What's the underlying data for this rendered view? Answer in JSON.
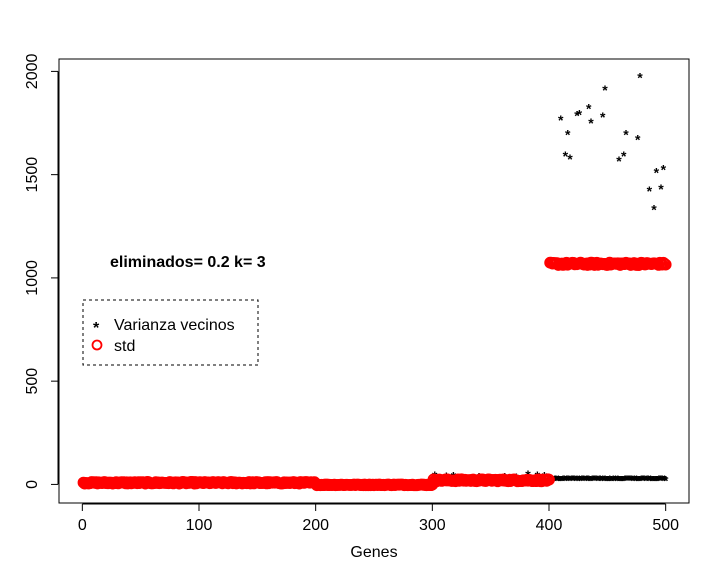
{
  "chart_data": {
    "type": "scatter",
    "xlabel": "Genes",
    "ylabel": "",
    "xlim": [
      -20,
      520
    ],
    "ylim": [
      -90,
      2060
    ],
    "xticks": [
      0,
      100,
      200,
      300,
      400,
      500
    ],
    "yticks": [
      0,
      500,
      1000,
      1500,
      2000
    ],
    "annotation": {
      "text": "eliminados= 0.2 k= 3",
      "x": 25,
      "y": 1090
    },
    "legend": {
      "placement": "left",
      "entries": [
        {
          "label": "Varianza vecinos",
          "symbol": "*",
          "color": "#000000"
        },
        {
          "label": "std",
          "symbol": "o",
          "color": "#ff0000"
        }
      ]
    },
    "series": [
      {
        "name": "Varianza vecinos",
        "symbol": "*",
        "color": "#000000",
        "segments": [
          {
            "x_from": 1,
            "x_to": 200,
            "y": 12,
            "noise": 3
          },
          {
            "x_from": 201,
            "x_to": 300,
            "y": 1,
            "noise": 1
          },
          {
            "x_from": 301,
            "x_to": 400,
            "y": 20,
            "noise": 8
          },
          {
            "x_from": 401,
            "x_to": 500,
            "y": 30,
            "noise": 2
          }
        ],
        "points": [
          [
            302,
            50
          ],
          [
            312,
            45
          ],
          [
            318,
            48
          ],
          [
            340,
            42
          ],
          [
            348,
            40
          ],
          [
            355,
            38
          ],
          [
            362,
            44
          ],
          [
            372,
            40
          ],
          [
            382,
            55
          ],
          [
            390,
            50
          ],
          [
            396,
            48
          ],
          [
            410,
            1775
          ],
          [
            414,
            1600
          ],
          [
            416,
            1705
          ],
          [
            418,
            1585
          ],
          [
            424,
            1795
          ],
          [
            426,
            1800
          ],
          [
            434,
            1830
          ],
          [
            436,
            1760
          ],
          [
            446,
            1790
          ],
          [
            448,
            1920
          ],
          [
            460,
            1575
          ],
          [
            464,
            1600
          ],
          [
            466,
            1705
          ],
          [
            476,
            1680
          ],
          [
            478,
            1980
          ],
          [
            486,
            1430
          ],
          [
            490,
            1340
          ],
          [
            492,
            1520
          ],
          [
            496,
            1440
          ],
          [
            498,
            1535
          ]
        ]
      },
      {
        "name": "std",
        "symbol": "o",
        "color": "#ff0000",
        "segments": [
          {
            "x_from": 1,
            "x_to": 200,
            "y": 8,
            "noise": 4
          },
          {
            "x_from": 201,
            "x_to": 300,
            "y": -2,
            "noise": 2
          },
          {
            "x_from": 301,
            "x_to": 400,
            "y": 20,
            "noise": 5
          },
          {
            "x_from": 401,
            "x_to": 500,
            "y": 1068,
            "noise": 6
          }
        ]
      }
    ]
  }
}
